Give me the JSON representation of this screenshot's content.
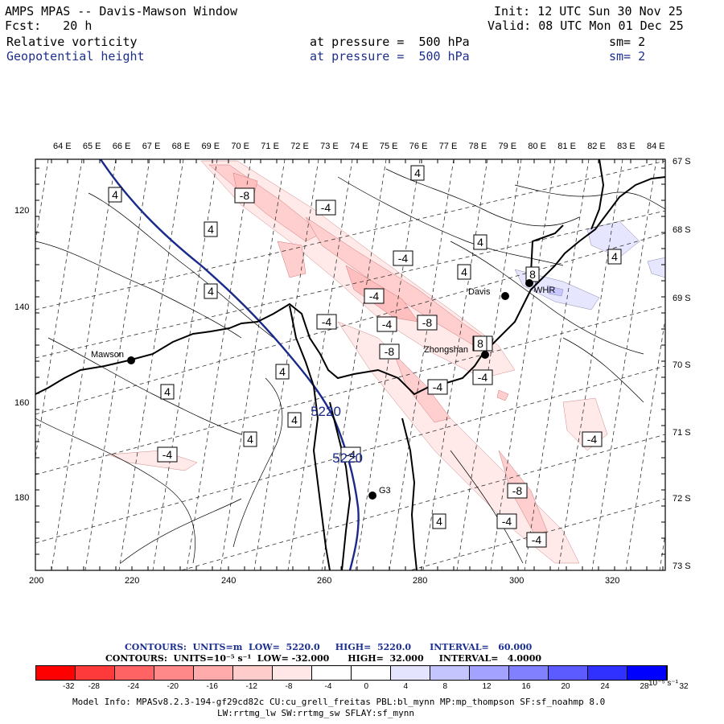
{
  "header": {
    "title": "AMPS MPAS -- Davis-Mawson Window",
    "forecast": "Fcst:   20 h",
    "init": "Init: 12 UTC Sun 30 Nov 25",
    "valid": "Valid: 08 UTC Mon 01 Dec 25",
    "field1": {
      "name": "Relative vorticity",
      "pressure": "at pressure =  500 hPa",
      "smooth": "sm= 2"
    },
    "field2": {
      "name": "Geopotential height",
      "pressure": "at pressure =  500 hPa",
      "smooth": "sm= 2"
    }
  },
  "map": {
    "lon_labels": [
      "64 E",
      "65 E",
      "66 E",
      "67 E",
      "68 E",
      "69 E",
      "70 E",
      "71 E",
      "72 E",
      "73 E",
      "74 E",
      "75 E",
      "76 E",
      "77 E",
      "78 E",
      "79 E",
      "80 E",
      "81 E",
      "82 E",
      "83 E",
      "84 E"
    ],
    "lat_labels": [
      "67 S",
      "68 S",
      "69 S",
      "70 S",
      "71 S",
      "72 S",
      "73 S"
    ],
    "x_ticks": [
      "200",
      "220",
      "240",
      "260",
      "280",
      "300",
      "320"
    ],
    "y_ticks": [
      "120",
      "140",
      "160",
      "180"
    ],
    "stations": [
      {
        "name": "Mawson"
      },
      {
        "name": "Davis"
      },
      {
        "name": "WHR"
      },
      {
        "name": "Zhongshan"
      },
      {
        "name": "G3"
      }
    ],
    "height_labels": [
      "5220",
      "5220"
    ],
    "vorticity_labels": [
      "4",
      "4",
      "4",
      "4",
      "4",
      "4",
      "4",
      "4",
      "4",
      "4",
      "4",
      "4",
      "4",
      "-4",
      "-4",
      "-4",
      "-4",
      "-4",
      "-4",
      "-4",
      "-4",
      "-4",
      "-4",
      "-4",
      "-4",
      "-8",
      "-8",
      "-8",
      "-8",
      "-8",
      "8",
      "8"
    ]
  },
  "legend": {
    "line1": "CONTOURS:  UNITS=m  LOW=  5220.0     HIGH=  5220.0      INTERVAL=   60.000",
    "line2": "CONTOURS:  UNITS=10⁻⁵ s⁻¹  LOW= -32.000      HIGH=  32.000     INTERVAL=   4.0000",
    "colorbar": {
      "colors": [
        "#ff0000",
        "#ff3a3a",
        "#ff6363",
        "#ff8888",
        "#ffabab",
        "#ffcccc",
        "#ffe7e7",
        "#ffffff",
        "#ffffff",
        "#e4e4ff",
        "#c4c4ff",
        "#a3a3ff",
        "#8181ff",
        "#5b5bff",
        "#3131ff",
        "#0000ff"
      ],
      "labels": [
        "-32",
        "-28",
        "-24",
        "-20",
        "-16",
        "-12",
        "-8",
        "-4",
        "0",
        "4",
        "8",
        "12",
        "16",
        "20",
        "24",
        "28",
        "32"
      ],
      "units": "10⁻⁵ s⁻¹"
    }
  },
  "footer": {
    "line1": "Model Info: MPASv8.2.3-194-gf29cd82c CU:cu_grell_freitas PBL:bl_mynn MP:mp_thompson SF:sf_noahmp 8.0",
    "line2": "LW:rrtmg_lw SW:rrtmg_sw SFLAY:sf_mynn"
  },
  "colors": {
    "height_contour": "#1a2a8a",
    "text_blue": "#1d2f8f"
  }
}
